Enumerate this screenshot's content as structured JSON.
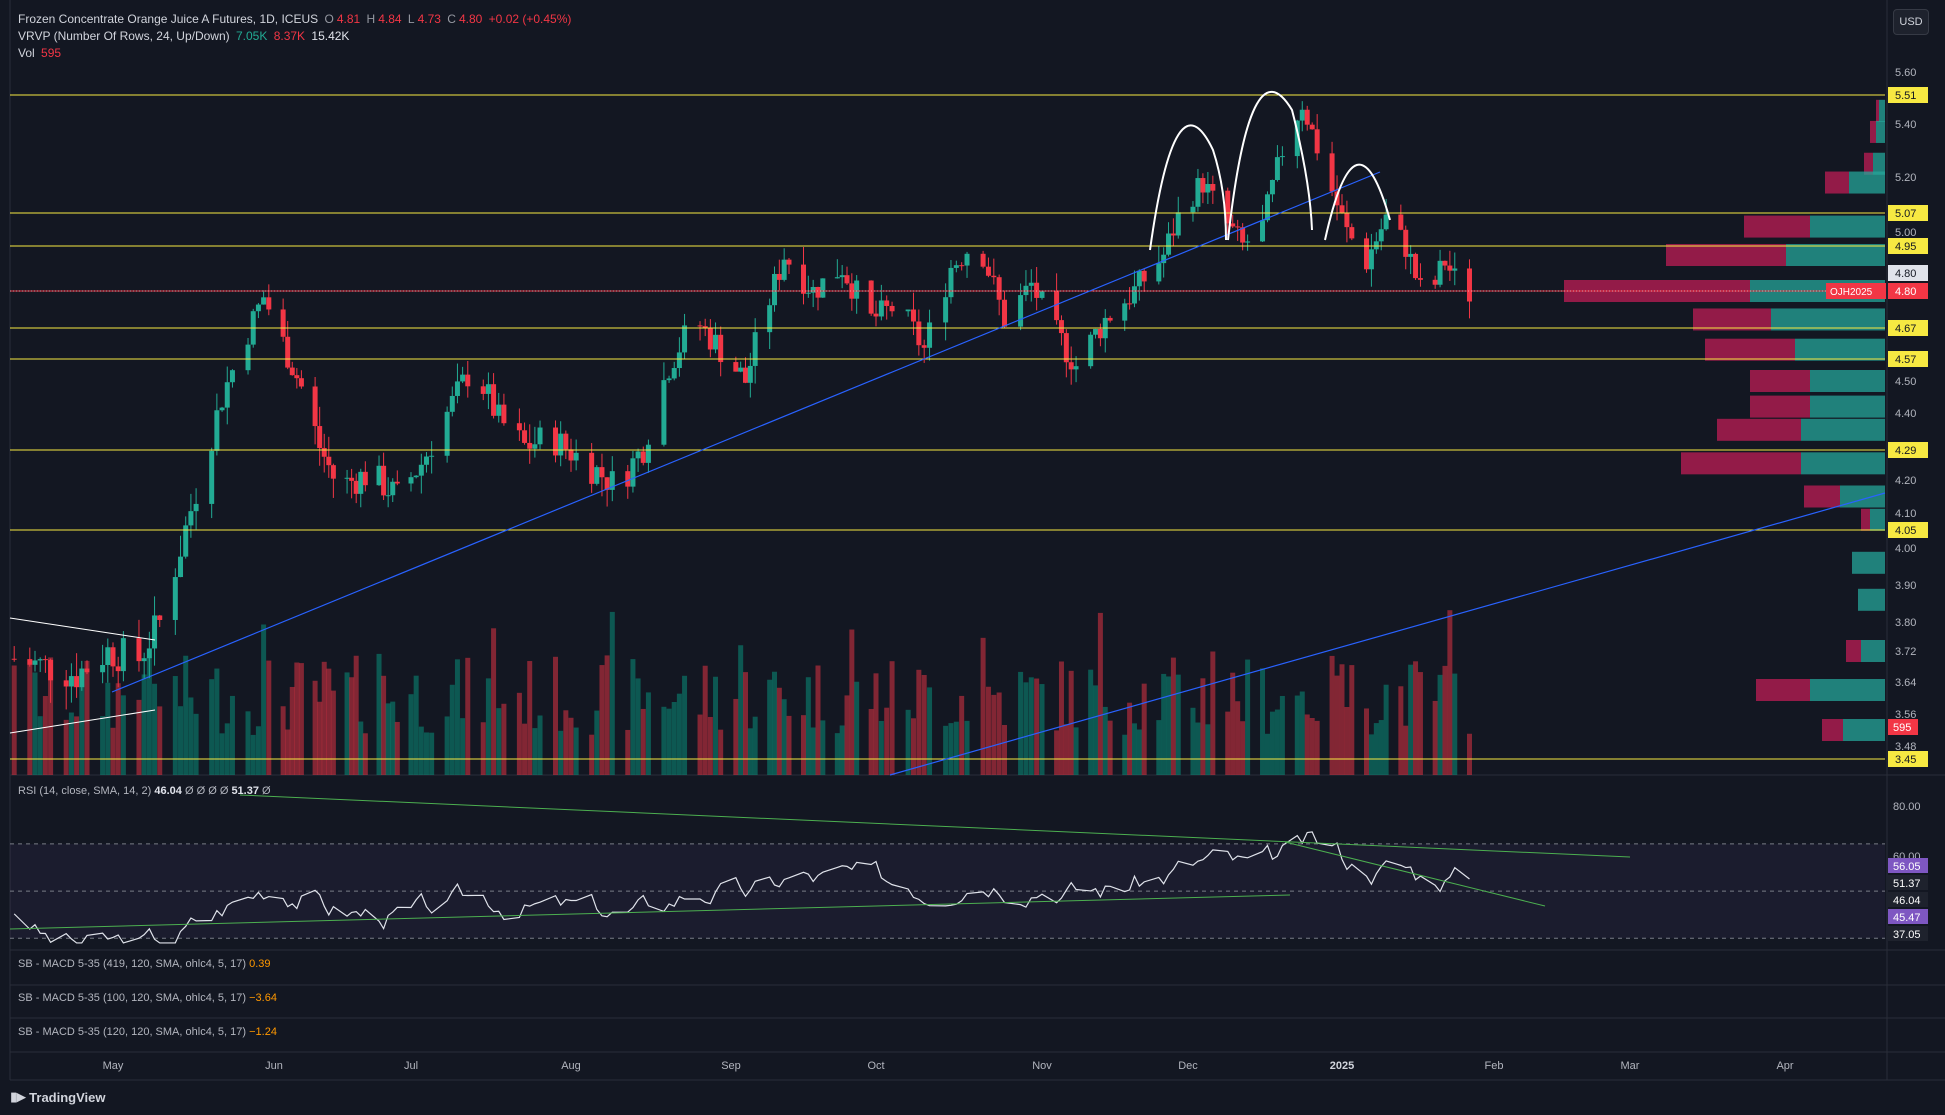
{
  "legend": {
    "symbol": "Frozen Concentrate Orange Juice A Futures, 1D, ICEUS",
    "o_label": "O",
    "o_val": "4.81",
    "h_label": "H",
    "h_val": "4.84",
    "l_label": "L",
    "l_val": "4.73",
    "c_label": "C",
    "c_val": "4.80",
    "change": "+0.02 (+0.45%)",
    "vrvp_label": "VRVP (Number Of Rows, 24, Up/Down)",
    "vrvp_up": "7.05K",
    "vrvp_down": "8.37K",
    "vrvp_total": "15.42K",
    "vol_label": "Vol",
    "vol_val": "595"
  },
  "currency_button": "USD",
  "rsi_legend": {
    "label": "RSI (14, close, SMA, 14, 2)",
    "v1": "46.04",
    "v2": "Ø",
    "v3": "Ø",
    "v4": "Ø",
    "v5": "Ø",
    "v6": "51.37",
    "v7": "Ø"
  },
  "macd_legends": [
    {
      "label": "SB - MACD 5-35 (419, 120, SMA, ohlc4, 5, 17)",
      "value": "0.39"
    },
    {
      "label": "SB - MACD 5-35 (100, 120, SMA, ohlc4, 5, 17)",
      "value": "−3.64"
    },
    {
      "label": "SB - MACD 5-35 (120, 120, SMA, ohlc4, 5, 17)",
      "value": "−1.24"
    }
  ],
  "brand": "TradingView",
  "chart_data": {
    "type": "candlestick",
    "symbol": "OJH2025",
    "price_scale": {
      "ticks": [
        5.6,
        5.4,
        5.2,
        5.0,
        4.5,
        4.4,
        4.2,
        4.1,
        4.0,
        3.9,
        3.8,
        3.72,
        3.64,
        3.56,
        3.48
      ],
      "range": [
        3.4,
        5.65
      ]
    },
    "x_axis": {
      "labels": [
        "May",
        "Jun",
        "Jul",
        "Aug",
        "Sep",
        "Oct",
        "Nov",
        "Dec",
        "2025",
        "Feb",
        "Mar",
        "Apr"
      ]
    },
    "horizontal_levels": [
      5.51,
      5.07,
      4.95,
      4.67,
      4.57,
      4.29,
      4.05,
      3.45
    ],
    "last_price": 4.8,
    "last_price_label": "OJH2025",
    "current_close_label": "4.80",
    "volume_last": "595",
    "price_path": [
      [
        "2024-04-12",
        3.7
      ],
      [
        "2024-04-18",
        3.68
      ],
      [
        "2024-04-24",
        3.66
      ],
      [
        "2024-04-30",
        3.72
      ],
      [
        "2024-05-06",
        3.7
      ],
      [
        "2024-05-10",
        3.8
      ],
      [
        "2024-05-14",
        4.0
      ],
      [
        "2024-05-18",
        4.22
      ],
      [
        "2024-05-22",
        4.45
      ],
      [
        "2024-05-26",
        4.62
      ],
      [
        "2024-05-30",
        4.78
      ],
      [
        "2024-06-03",
        4.62
      ],
      [
        "2024-06-07",
        4.48
      ],
      [
        "2024-06-11",
        4.3
      ],
      [
        "2024-06-15",
        4.18
      ],
      [
        "2024-06-22",
        4.22
      ],
      [
        "2024-06-28",
        4.15
      ],
      [
        "2024-07-03",
        4.25
      ],
      [
        "2024-07-08",
        4.4
      ],
      [
        "2024-07-13",
        4.55
      ],
      [
        "2024-07-18",
        4.38
      ],
      [
        "2024-07-23",
        4.3
      ],
      [
        "2024-07-28",
        4.33
      ],
      [
        "2024-08-04",
        4.25
      ],
      [
        "2024-08-10",
        4.18
      ],
      [
        "2024-08-15",
        4.3
      ],
      [
        "2024-08-20",
        4.55
      ],
      [
        "2024-08-25",
        4.7
      ],
      [
        "2024-08-30",
        4.6
      ],
      [
        "2024-09-04",
        4.5
      ],
      [
        "2024-09-08",
        4.72
      ],
      [
        "2024-09-12",
        4.92
      ],
      [
        "2024-09-18",
        4.8
      ],
      [
        "2024-09-24",
        4.88
      ],
      [
        "2024-09-30",
        4.7
      ],
      [
        "2024-10-05",
        4.75
      ],
      [
        "2024-10-10",
        4.6
      ],
      [
        "2024-10-15",
        4.88
      ],
      [
        "2024-10-20",
        4.98
      ],
      [
        "2024-10-25",
        4.7
      ],
      [
        "2024-10-30",
        4.82
      ],
      [
        "2024-11-04",
        4.65
      ],
      [
        "2024-11-08",
        4.55
      ],
      [
        "2024-11-14",
        4.7
      ],
      [
        "2024-11-20",
        4.8
      ],
      [
        "2024-11-26",
        4.92
      ],
      [
        "2024-11-30",
        5.1
      ],
      [
        "2024-12-04",
        5.18
      ],
      [
        "2024-12-08",
        5.05
      ],
      [
        "2024-12-12",
        4.95
      ],
      [
        "2024-12-16",
        5.02
      ],
      [
        "2024-12-20",
        5.3
      ],
      [
        "2024-12-24",
        5.48
      ],
      [
        "2024-12-29",
        5.2
      ],
      [
        "2025-01-02",
        5.0
      ],
      [
        "2025-01-06",
        4.9
      ],
      [
        "2025-01-10",
        5.05
      ],
      [
        "2025-01-14",
        4.95
      ],
      [
        "2025-01-18",
        4.75
      ],
      [
        "2025-01-22",
        4.9
      ],
      [
        "2025-01-26",
        4.78
      ],
      [
        "2025-01-28",
        4.8
      ]
    ],
    "volume_profile_rows": [
      {
        "price": 5.45,
        "up": 2,
        "down": 1
      },
      {
        "price": 5.37,
        "up": 3,
        "down": 2
      },
      {
        "price": 5.25,
        "up": 4,
        "down": 3
      },
      {
        "price": 5.18,
        "up": 12,
        "down": 8
      },
      {
        "price": 5.02,
        "up": 25,
        "down": 22
      },
      {
        "price": 4.92,
        "up": 33,
        "down": 40
      },
      {
        "price": 4.8,
        "up": 45,
        "down": 62
      },
      {
        "price": 4.7,
        "up": 38,
        "down": 26
      },
      {
        "price": 4.6,
        "up": 30,
        "down": 30
      },
      {
        "price": 4.5,
        "up": 25,
        "down": 20
      },
      {
        "price": 4.42,
        "up": 25,
        "down": 20
      },
      {
        "price": 4.35,
        "up": 28,
        "down": 28
      },
      {
        "price": 4.25,
        "up": 28,
        "down": 40
      },
      {
        "price": 4.15,
        "up": 15,
        "down": 12
      },
      {
        "price": 4.08,
        "up": 5,
        "down": 3
      },
      {
        "price": 3.96,
        "up": 11,
        "down": 0
      },
      {
        "price": 3.86,
        "up": 9,
        "down": 0
      },
      {
        "price": 3.72,
        "up": 8,
        "down": 5
      },
      {
        "price": 3.62,
        "up": 25,
        "down": 18
      },
      {
        "price": 3.52,
        "up": 14,
        "down": 7
      }
    ],
    "rsi": {
      "ticks": [
        "80.00",
        "60.00"
      ],
      "levels": [
        "56.05",
        "51.37",
        "46.04",
        "45.47",
        "37.05"
      ],
      "last": 46.04,
      "ma": 51.37
    },
    "drawings": {
      "trendline": "blue rising trendline",
      "pattern": "head and shoulders arcs"
    }
  }
}
